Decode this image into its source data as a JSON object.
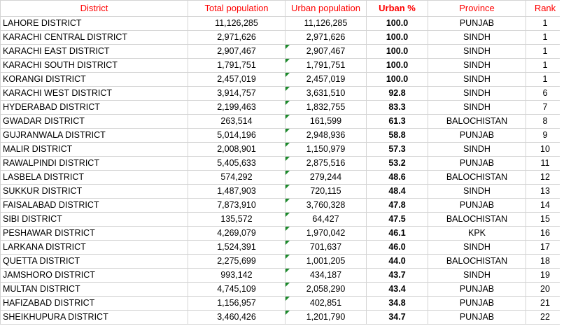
{
  "header": {
    "district": "District",
    "total": "Total population",
    "urban": "Urban population",
    "pct": "Urban %",
    "province": "Province",
    "rank": "Rank"
  },
  "rows": [
    {
      "district": "LAHORE DISTRICT",
      "total": "11,126,285",
      "urban": "11,126,285",
      "pct": "100.0",
      "province": "PUNJAB",
      "rank": "1",
      "flag": false
    },
    {
      "district": "KARACHI CENTRAL DISTRICT",
      "total": "2,971,626",
      "urban": "2,971,626",
      "pct": "100.0",
      "province": "SINDH",
      "rank": "1",
      "flag": false
    },
    {
      "district": "KARACHI EAST DISTRICT",
      "total": "2,907,467",
      "urban": "2,907,467",
      "pct": "100.0",
      "province": "SINDH",
      "rank": "1",
      "flag": true
    },
    {
      "district": "KARACHI SOUTH DISTRICT",
      "total": "1,791,751",
      "urban": "1,791,751",
      "pct": "100.0",
      "province": "SINDH",
      "rank": "1",
      "flag": true
    },
    {
      "district": "KORANGI DISTRICT",
      "total": "2,457,019",
      "urban": "2,457,019",
      "pct": "100.0",
      "province": "SINDH",
      "rank": "1",
      "flag": true
    },
    {
      "district": "KARACHI WEST DISTRICT",
      "total": "3,914,757",
      "urban": "3,631,510",
      "pct": "92.8",
      "province": "SINDH",
      "rank": "6",
      "flag": true
    },
    {
      "district": "HYDERABAD DISTRICT",
      "total": "2,199,463",
      "urban": "1,832,755",
      "pct": "83.3",
      "province": "SINDH",
      "rank": "7",
      "flag": true
    },
    {
      "district": "GWADAR DISTRICT",
      "total": "263,514",
      "urban": "161,599",
      "pct": "61.3",
      "province": "BALOCHISTAN",
      "rank": "8",
      "flag": true
    },
    {
      "district": "GUJRANWALA DISTRICT",
      "total": "5,014,196",
      "urban": "2,948,936",
      "pct": "58.8",
      "province": "PUNJAB",
      "rank": "9",
      "flag": true
    },
    {
      "district": "MALIR DISTRICT",
      "total": "2,008,901",
      "urban": "1,150,979",
      "pct": "57.3",
      "province": "SINDH",
      "rank": "10",
      "flag": true
    },
    {
      "district": "RAWALPINDI DISTRICT",
      "total": "5,405,633",
      "urban": "2,875,516",
      "pct": "53.2",
      "province": "PUNJAB",
      "rank": "11",
      "flag": true
    },
    {
      "district": "LASBELA DISTRICT",
      "total": "574,292",
      "urban": "279,244",
      "pct": "48.6",
      "province": "BALOCHISTAN",
      "rank": "12",
      "flag": true
    },
    {
      "district": "SUKKUR DISTRICT",
      "total": "1,487,903",
      "urban": "720,115",
      "pct": "48.4",
      "province": "SINDH",
      "rank": "13",
      "flag": true
    },
    {
      "district": "FAISALABAD DISTRICT",
      "total": "7,873,910",
      "urban": "3,760,328",
      "pct": "47.8",
      "province": "PUNJAB",
      "rank": "14",
      "flag": true
    },
    {
      "district": "SIBI DISTRICT",
      "total": "135,572",
      "urban": "64,427",
      "pct": "47.5",
      "province": "BALOCHISTAN",
      "rank": "15",
      "flag": true
    },
    {
      "district": "PESHAWAR DISTRICT",
      "total": "4,269,079",
      "urban": "1,970,042",
      "pct": "46.1",
      "province": "KPK",
      "rank": "16",
      "flag": true
    },
    {
      "district": "LARKANA DISTRICT",
      "total": "1,524,391",
      "urban": "701,637",
      "pct": "46.0",
      "province": "SINDH",
      "rank": "17",
      "flag": true
    },
    {
      "district": "QUETTA DISTRICT",
      "total": "2,275,699",
      "urban": "1,001,205",
      "pct": "44.0",
      "province": "BALOCHISTAN",
      "rank": "18",
      "flag": true
    },
    {
      "district": "JAMSHORO DISTRICT",
      "total": "993,142",
      "urban": "434,187",
      "pct": "43.7",
      "province": "SINDH",
      "rank": "19",
      "flag": true
    },
    {
      "district": "MULTAN DISTRICT",
      "total": "4,745,109",
      "urban": "2,058,290",
      "pct": "43.4",
      "province": "PUNJAB",
      "rank": "20",
      "flag": true
    },
    {
      "district": "HAFIZABAD DISTRICT",
      "total": "1,156,957",
      "urban": "402,851",
      "pct": "34.8",
      "province": "PUNJAB",
      "rank": "21",
      "flag": true
    },
    {
      "district": "SHEIKHUPURA DISTRICT",
      "total": "3,460,426",
      "urban": "1,201,790",
      "pct": "34.7",
      "province": "PUNJAB",
      "rank": "22",
      "flag": true
    }
  ],
  "colors": {
    "header_text": "#ff0000",
    "gridline": "#d4d4d4",
    "error_indicator": "#1a8a2a"
  }
}
